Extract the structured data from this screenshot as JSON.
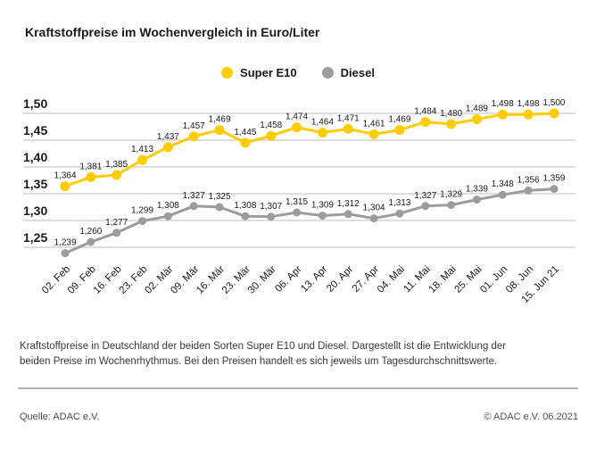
{
  "page": {
    "title": "Kraftstoffpreise im Wochenvergleich in Euro/Liter",
    "description": "Kraftstoffpreise in Deutschland der beiden Sorten Super E10 und Diesel. Dargestellt ist die Entwicklung der beiden Preise im Wochenrhythmus. Bei den Preisen handelt es sich jeweils um Tagesdurchschnittswerte.",
    "source": "Quelle: ADAC e.V.",
    "copyright": "© ADAC e.V. 06.2021"
  },
  "legend": {
    "items": [
      {
        "label": "Super E10",
        "color": "#FFCC00"
      },
      {
        "label": "Diesel",
        "color": "#9C9C9C"
      }
    ]
  },
  "chart_data": {
    "type": "line",
    "title": "Kraftstoffpreise im Wochenvergleich in Euro/Liter",
    "ylabel": "Euro/Liter",
    "xlabel": "",
    "categories": [
      "02. Feb",
      "09. Feb",
      "16. Feb",
      "23. Feb",
      "02. Mär",
      "09. Mär",
      "16. Mär",
      "23. Mär",
      "30. Mär",
      "06. Apr",
      "13. Apr",
      "20. Apr",
      "27. Apr",
      "04. Mai",
      "11. Mai",
      "18. Mai",
      "25. Mai",
      "01. Jun",
      "08. Jun",
      "15. Jun 21"
    ],
    "series": [
      {
        "name": "Super E10",
        "color": "#FFCC00",
        "values": [
          1.364,
          1.381,
          1.385,
          1.413,
          1.437,
          1.457,
          1.469,
          1.445,
          1.458,
          1.474,
          1.464,
          1.471,
          1.461,
          1.469,
          1.484,
          1.48,
          1.489,
          1.498,
          1.498,
          1.5
        ]
      },
      {
        "name": "Diesel",
        "color": "#9C9C9C",
        "values": [
          1.239,
          1.26,
          1.277,
          1.299,
          1.308,
          1.327,
          1.325,
          1.308,
          1.307,
          1.315,
          1.309,
          1.312,
          1.304,
          1.313,
          1.327,
          1.329,
          1.339,
          1.348,
          1.356,
          1.359
        ]
      }
    ],
    "yticks": [
      1.25,
      1.3,
      1.35,
      1.4,
      1.45,
      1.5
    ],
    "ylim": [
      1.22,
      1.52
    ],
    "grid": true,
    "legend_position": "top",
    "value_labels": true,
    "decimal_separator": ","
  },
  "colors": {
    "grid": "#CBCBCB",
    "text": "#1A1A1A",
    "muted": "#4D4D4D",
    "divider": "#B2B2B2"
  }
}
